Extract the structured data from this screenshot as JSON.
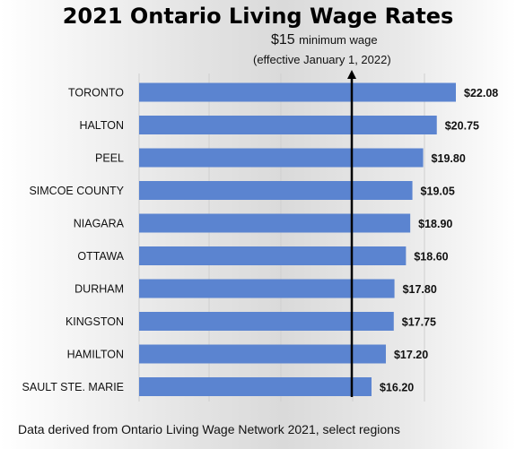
{
  "chart_data": {
    "type": "bar",
    "orientation": "horizontal",
    "title": "2021 Ontario Living Wage Rates",
    "categories": [
      "TORONTO",
      "HALTON",
      "PEEL",
      "SIMCOE COUNTY",
      "NIAGARA",
      "OTTAWA",
      "DURHAM",
      "KINGSTON",
      "HAMILTON",
      "SAULT STE. MARIE"
    ],
    "values": [
      22.08,
      20.75,
      19.8,
      19.05,
      18.9,
      18.6,
      17.8,
      17.75,
      17.2,
      16.2
    ],
    "value_labels": [
      "$22.08",
      "$20.75",
      "$19.80",
      "$19.05",
      "$18.90",
      "$18.60",
      "$17.80",
      "$17.75",
      "$17.20",
      "$16.20"
    ],
    "xlim": [
      0,
      22.08
    ],
    "grid": true,
    "bar_color": "#5b84d0",
    "reference_line": {
      "value": 15,
      "label_amount": "$15",
      "label_text": "minimum wage",
      "label_sub": "(effective January 1, 2022)"
    }
  },
  "footnote": "Data derived from Ontario Living Wage Network 2021, select regions"
}
